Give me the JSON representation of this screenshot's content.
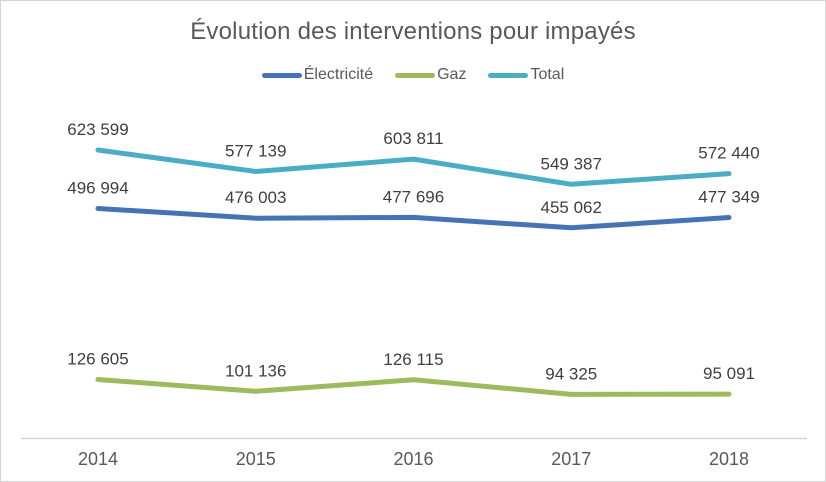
{
  "chart_data": {
    "type": "line",
    "title": "Évolution des interventions pour impayés",
    "x": [
      "2014",
      "2015",
      "2016",
      "2017",
      "2018"
    ],
    "series": [
      {
        "name": "Électricité",
        "color": "#4573B4",
        "values": [
          496994,
          476003,
          477696,
          455062,
          477349
        ],
        "labels": [
          "496 994",
          "476 003",
          "477 696",
          "455 062",
          "477 349"
        ]
      },
      {
        "name": "Gaz",
        "color": "#9CBB5C",
        "values": [
          126605,
          101136,
          126115,
          94325,
          95091
        ],
        "labels": [
          "126 605",
          "101 136",
          "126 115",
          "94 325",
          "95 091"
        ]
      },
      {
        "name": "Total",
        "color": "#4BACC6",
        "values": [
          623599,
          577139,
          603811,
          549387,
          572440
        ],
        "labels": [
          "623 599",
          "577 139",
          "603 811",
          "549 387",
          "572 440"
        ]
      }
    ],
    "xlabel": "",
    "ylabel": "",
    "ylim": [
      0,
      700000
    ],
    "grid": false,
    "legend_position": "top",
    "data_labels": true,
    "styling": {
      "title_color": "#595959",
      "data_label_color": "#3f3f3f",
      "axis_label_color": "#595959",
      "axis_line_color": "#d6d6d6"
    }
  }
}
